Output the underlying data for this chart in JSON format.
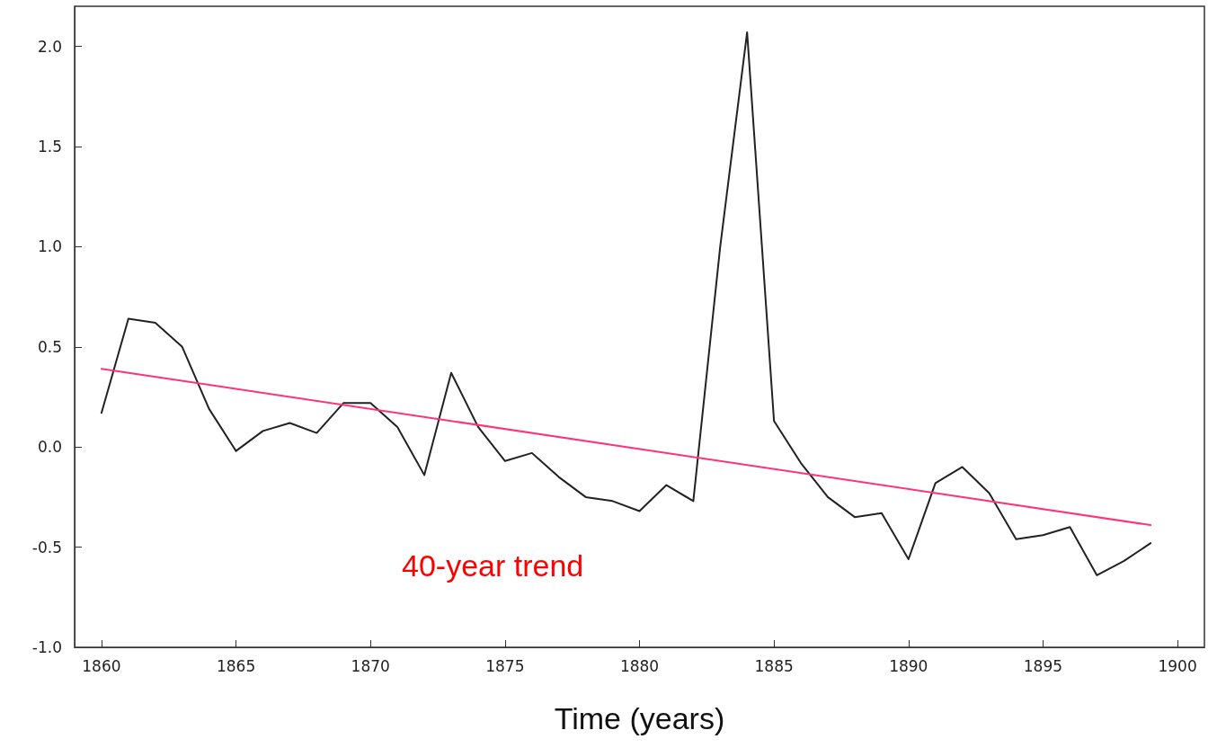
{
  "chart_data": {
    "type": "line",
    "xlabel": "Time (years)",
    "annotations": [
      "40-year trend"
    ],
    "x": [
      1860,
      1861,
      1862,
      1863,
      1864,
      1865,
      1866,
      1867,
      1868,
      1869,
      1870,
      1871,
      1872,
      1873,
      1874,
      1875,
      1876,
      1877,
      1878,
      1879,
      1880,
      1881,
      1882,
      1883,
      1884,
      1885,
      1886,
      1887,
      1888,
      1889,
      1890,
      1891,
      1892,
      1893,
      1894,
      1895,
      1896,
      1897,
      1898,
      1899
    ],
    "series": [
      {
        "color": "#222222",
        "values": [
          0.17,
          0.64,
          0.62,
          0.5,
          0.19,
          -0.02,
          0.08,
          0.12,
          0.07,
          0.22,
          0.22,
          0.1,
          -0.14,
          0.37,
          0.1,
          -0.07,
          -0.03,
          -0.15,
          -0.25,
          -0.27,
          -0.32,
          -0.19,
          -0.27,
          1.0,
          2.07,
          0.13,
          -0.08,
          -0.25,
          -0.35,
          -0.33,
          -0.56,
          -0.18,
          -0.1,
          -0.23,
          -0.46,
          -0.44,
          -0.4,
          -0.64,
          -0.57,
          -0.48
        ]
      },
      {
        "type": "line",
        "color": "#ff3377",
        "x": [
          1860,
          1899
        ],
        "values": [
          0.39,
          -0.39
        ]
      }
    ],
    "xlim": [
      1859,
      1901
    ],
    "xticks": [
      1860,
      1865,
      1870,
      1875,
      1880,
      1885,
      1890,
      1895,
      1900
    ],
    "ylim": [
      -1,
      2.2
    ],
    "yticks": [
      {
        "value": -1,
        "label": "-1.0"
      },
      -0.5,
      {
        "value": 0,
        "label": "0.0"
      },
      0.5,
      {
        "value": 1,
        "label": "1.0"
      },
      1.5,
      {
        "value": 2,
        "label": "2.0"
      }
    ],
    "grid": false,
    "marker": "none",
    "line_style": "solid"
  }
}
